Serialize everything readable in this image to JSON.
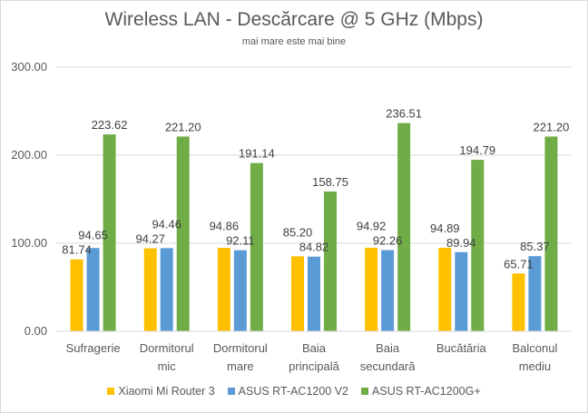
{
  "chart_data": {
    "type": "bar",
    "title": "Wireless LAN - Descărcare @ 5 GHz (Mbps)",
    "subtitle": "mai mare este mai bine",
    "xlabel": "",
    "ylabel": "",
    "ylim": [
      0,
      300
    ],
    "yticks": [
      "0.00",
      "100.00",
      "200.00",
      "300.00"
    ],
    "grid": true,
    "legend_position": "bottom",
    "categories": [
      [
        "Sufragerie"
      ],
      [
        "Dormitorul",
        "mic"
      ],
      [
        "Dormitorul",
        "mare"
      ],
      [
        "Baia",
        "principală"
      ],
      [
        "Baia",
        "secundară"
      ],
      [
        "Bucătăria"
      ],
      [
        "Balconul",
        "mediu"
      ]
    ],
    "series": [
      {
        "name": "Xiaomi Mi Router 3",
        "color": "#FFC000",
        "values": [
          81.74,
          94.27,
          94.86,
          85.2,
          94.92,
          94.89,
          65.71
        ]
      },
      {
        "name": "ASUS RT-AC1200 V2",
        "color": "#5B9BD5",
        "values": [
          94.65,
          94.46,
          92.11,
          84.82,
          92.26,
          89.94,
          85.37
        ]
      },
      {
        "name": "ASUS RT-AC1200G+",
        "color": "#70AD47",
        "values": [
          223.62,
          221.2,
          191.14,
          158.75,
          236.51,
          194.79,
          221.2
        ]
      }
    ]
  }
}
